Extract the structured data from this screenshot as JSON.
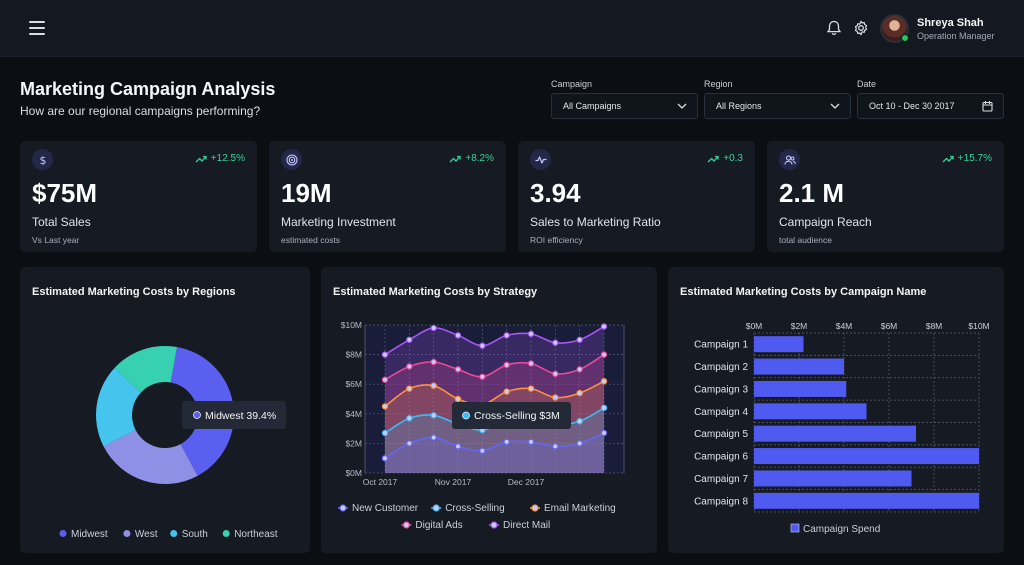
{
  "header": {
    "user_name": "Shreya Shah",
    "user_role": "Operation Manager",
    "icons": [
      "menu-icon",
      "bell-icon",
      "gear-icon"
    ]
  },
  "page": {
    "title": "Marketing Campaign Analysis",
    "subtitle": "How are our regional campaigns performing?"
  },
  "filters": {
    "campaign": {
      "label": "Campaign",
      "value": "All Campaigns"
    },
    "region": {
      "label": "Region",
      "value": "All Regions"
    },
    "date": {
      "label": "Date",
      "value": "Oct 10 - Dec 30 2017"
    }
  },
  "kpis": [
    {
      "icon": "dollar-icon",
      "change": "+12.5%",
      "value": "$75M",
      "label": "Total Sales",
      "sub": "Vs Last year"
    },
    {
      "icon": "target-icon",
      "change": "+8.2%",
      "value": "19M",
      "label": "Marketing Investment",
      "sub": "estimated costs"
    },
    {
      "icon": "pulse-icon",
      "change": "+0.3",
      "value": "3.94",
      "label": "Sales to Marketing Ratio",
      "sub": "ROI efficiency"
    },
    {
      "icon": "users-icon",
      "change": "+15.7%",
      "value": "2.1 M",
      "label": "Campaign Reach",
      "sub": "total audience"
    }
  ],
  "chart_data": [
    {
      "type": "pie",
      "title": "Estimated Marketing Costs by Regions",
      "categories": [
        "Midwest",
        "West",
        "South",
        "Northeast"
      ],
      "values": [
        39.4,
        25.3,
        19.5,
        15.8
      ],
      "colors": [
        "#5b5ff0",
        "#8d90e4",
        "#45c4ee",
        "#37d0b0"
      ],
      "legend": "bottom",
      "tooltip": "Midwest 39.4%"
    },
    {
      "type": "area",
      "title": "Estimated Marketing Costs by Strategy",
      "x": [
        "Oct 2017",
        "",
        "",
        "Nov 2017",
        "",
        "",
        "Dec 2017",
        "",
        "",
        ""
      ],
      "x_ticks": [
        "Oct 2017",
        "Nov 2017",
        "Dec 2017"
      ],
      "y_ticks": [
        "$0M",
        "$2M",
        "$4M",
        "$6M",
        "$8M",
        "$10M"
      ],
      "ylim": [
        0,
        10
      ],
      "grid": true,
      "legend": "bottom",
      "series": [
        {
          "name": "New Customer",
          "color": "#6366f1",
          "values": [
            1.0,
            2.0,
            2.4,
            1.8,
            1.5,
            2.1,
            2.1,
            1.8,
            2.0,
            2.7
          ]
        },
        {
          "name": "Cross-Selling",
          "color": "#38bdf8",
          "values": [
            2.7,
            3.7,
            3.9,
            3.3,
            2.9,
            3.5,
            3.7,
            3.3,
            3.5,
            4.4
          ]
        },
        {
          "name": "Email Marketing",
          "color": "#fb923c",
          "values": [
            4.5,
            5.7,
            5.9,
            5.0,
            4.6,
            5.5,
            5.7,
            5.1,
            5.4,
            6.2
          ]
        },
        {
          "name": "Digital Ads",
          "color": "#ec4899",
          "values": [
            6.3,
            7.2,
            7.5,
            7.0,
            6.5,
            7.3,
            7.4,
            6.7,
            7.0,
            8.0
          ]
        },
        {
          "name": "Direct Mail",
          "color": "#a855f7",
          "values": [
            8.0,
            9.0,
            9.8,
            9.3,
            8.6,
            9.3,
            9.4,
            8.8,
            9.0,
            9.9
          ]
        }
      ],
      "tooltip": "Cross-Selling $3M"
    },
    {
      "type": "bar",
      "orientation": "horizontal",
      "title": "Estimated Marketing Costs by Campaign Name",
      "categories": [
        "Campaign 1",
        "Campaign 2",
        "Campaign 3",
        "Campaign 4",
        "Campaign 5",
        "Campaign 6",
        "Campaign 7",
        "Campaign 8"
      ],
      "x_ticks": [
        "$0M",
        "$2M",
        "$4M",
        "$6M",
        "$8M",
        "$10M"
      ],
      "xlim": [
        0,
        10
      ],
      "series": [
        {
          "name": "Campaign Spend",
          "color": "#4f5bf0",
          "values": [
            2.2,
            4.0,
            4.1,
            5.0,
            7.2,
            10.0,
            7.0,
            10.0
          ]
        }
      ],
      "grid": true,
      "legend": "bottom"
    }
  ]
}
